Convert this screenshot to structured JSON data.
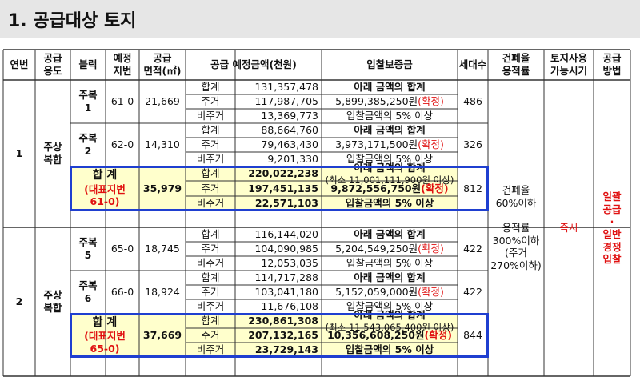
{
  "page": {
    "title": "1. 공급대상 토지"
  },
  "headers": {
    "no": "연번",
    "use": "공급\n용도",
    "block": "블럭",
    "lot": "예정\n지번",
    "area": "공급\n면적(㎡)",
    "price": "공급  예정금액(천원)",
    "deposit": "입찰보증금",
    "units": "세대수",
    "ratio": "건폐율\n용적률",
    "avail": "토지사용\n가능시기",
    "method": "공급\n방법"
  },
  "groups": [
    {
      "no": "1",
      "use": "주상\n복합",
      "blocks": [
        {
          "block": "주복\n1",
          "lot": "61-0",
          "area": "21,669",
          "units": "486",
          "rows": [
            {
              "type": "합계",
              "amount": "131,357,478",
              "dep": "아래 금액의 합계",
              "note": ""
            },
            {
              "type": "주거",
              "amount": "117,987,705",
              "dep": "5,899,385,250원",
              "note": "(확정)"
            },
            {
              "type": "비주거",
              "amount": "13,369,773",
              "dep": "입찰금액의 5% 이상",
              "note": ""
            }
          ]
        },
        {
          "block": "주복\n2",
          "lot": "62-0",
          "area": "14,310",
          "units": "326",
          "rows": [
            {
              "type": "합계",
              "amount": "88,664,760",
              "dep": "아래 금액의 합계",
              "note": ""
            },
            {
              "type": "주거",
              "amount": "79,463,430",
              "dep": "3,973,171,500원",
              "note": "(확정)"
            },
            {
              "type": "비주거",
              "amount": "9,201,330",
              "dep": "입찰금액의 5% 이상",
              "note": ""
            }
          ]
        }
      ],
      "total": {
        "label": "합 계",
        "sub": "(대표지번\n61-0)",
        "area": "35,979",
        "units": "812",
        "rows": [
          {
            "type": "합계",
            "amount": "220,022,238",
            "dep": "아래 금액의 합계",
            "dep2": "(최소 11,001,111,900원 이상)",
            "note": ""
          },
          {
            "type": "주거",
            "amount": "197,451,135",
            "dep": "9,872,556,750원",
            "note": "(확정)"
          },
          {
            "type": "비주거",
            "amount": "22,571,103",
            "dep": "입찰금액의 5% 이상",
            "note": ""
          }
        ]
      }
    },
    {
      "no": "2",
      "use": "주상\n복합",
      "blocks": [
        {
          "block": "주복\n5",
          "lot": "65-0",
          "area": "18,745",
          "units": "422",
          "rows": [
            {
              "type": "합계",
              "amount": "116,144,020",
              "dep": "아래 금액의 합계",
              "note": ""
            },
            {
              "type": "주거",
              "amount": "104,090,985",
              "dep": "5,204,549,250원",
              "note": "(확정)"
            },
            {
              "type": "비주거",
              "amount": "12,053,035",
              "dep": "입찰금액의 5% 이상",
              "note": ""
            }
          ]
        },
        {
          "block": "주복\n6",
          "lot": "66-0",
          "area": "18,924",
          "units": "422",
          "rows": [
            {
              "type": "합계",
              "amount": "114,717,288",
              "dep": "아래 금액의 합계",
              "note": ""
            },
            {
              "type": "주거",
              "amount": "103,041,180",
              "dep": "5,152,059,000원",
              "note": "(확정)"
            },
            {
              "type": "비주거",
              "amount": "11,676,108",
              "dep": "입찰금액의 5% 이상",
              "note": ""
            }
          ]
        }
      ],
      "total": {
        "label": "합 계",
        "sub": "(대표지번\n65-0)",
        "area": "37,669",
        "units": "844",
        "rows": [
          {
            "type": "합계",
            "amount": "230,861,308",
            "dep": "아래 금액의 합계",
            "dep2": "(최소 11,543,065,400원 이상)",
            "note": ""
          },
          {
            "type": "주거",
            "amount": "207,132,165",
            "dep": "10,356,608,250원",
            "note": "(확정)"
          },
          {
            "type": "비주거",
            "amount": "23,729,143",
            "dep": "입찰금액의 5% 이상",
            "note": ""
          }
        ]
      }
    }
  ],
  "ratio": {
    "text": "건폐율\n60%이하\n\n용적률\n300%이하\n(주거\n270%이하)"
  },
  "avail": {
    "text": "즉시"
  },
  "method": {
    "text": "일괄\n공급\n·\n일반\n경쟁\n입찰"
  },
  "colors": {
    "highlight": "#ffffcc",
    "box": "#1f3fd0",
    "red": "#e01010"
  }
}
